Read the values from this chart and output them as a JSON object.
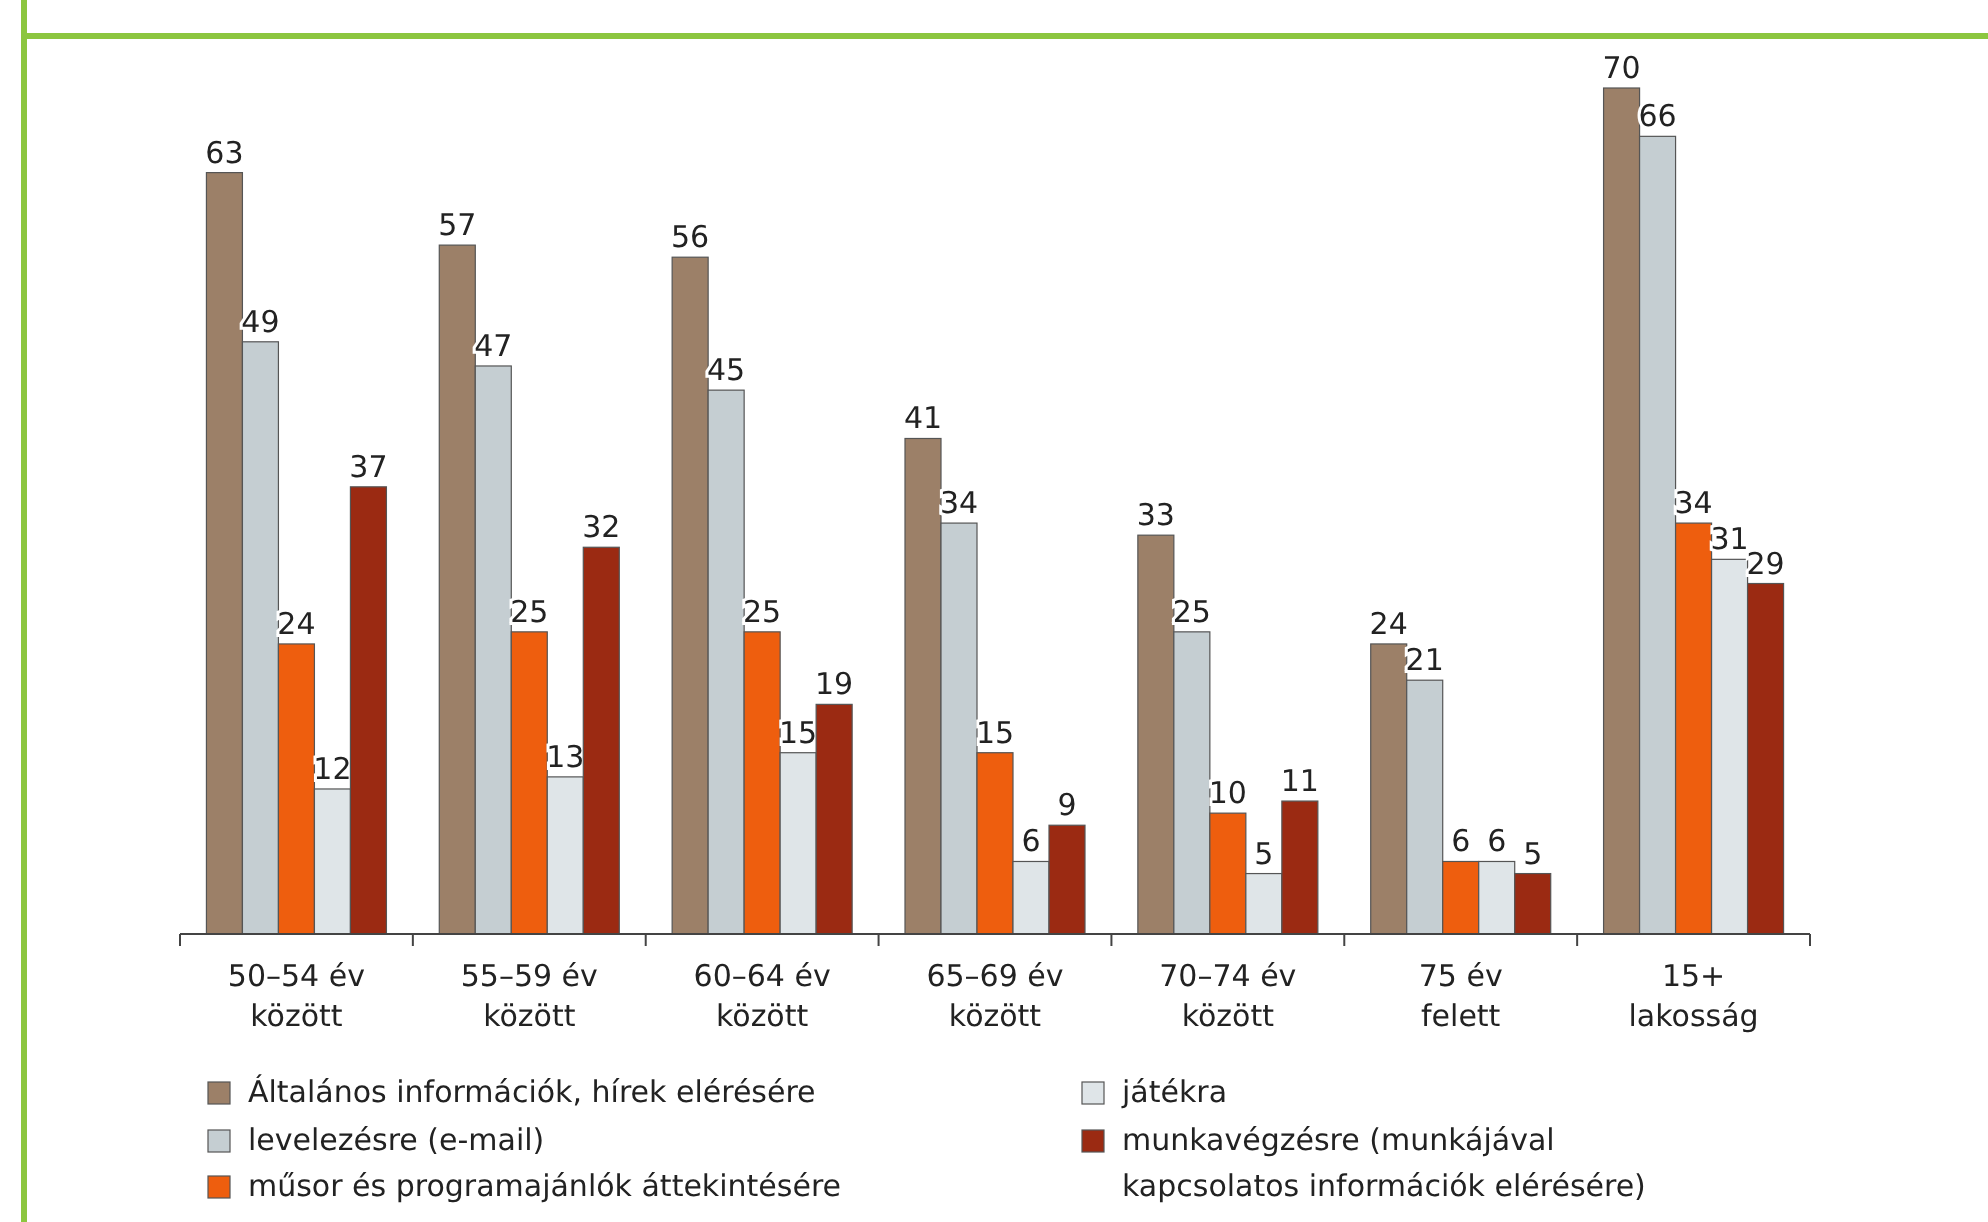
{
  "chart_data": {
    "type": "bar",
    "categories": [
      "50–54 év\nközött",
      "55–59 év\nközött",
      "60–64 év\nközött",
      "65–69 év\nközött",
      "70–74 év\nközött",
      "75 év\nfelett",
      "15+\nlakosság"
    ],
    "series": [
      {
        "name": "Általános információk, hírek elérésére",
        "color": "#9c8068",
        "values": [
          63,
          57,
          56,
          41,
          33,
          24,
          70
        ]
      },
      {
        "name": "levelezésre (e-mail)",
        "color": "#c5ced2",
        "values": [
          49,
          47,
          45,
          34,
          25,
          21,
          66
        ]
      },
      {
        "name": "műsor és programajánlók áttekintésére",
        "color": "#ee5e0e",
        "values": [
          24,
          25,
          25,
          15,
          10,
          6,
          34
        ]
      },
      {
        "name": "játékra",
        "color": "#dfe5e8",
        "values": [
          12,
          13,
          15,
          6,
          5,
          6,
          31
        ]
      },
      {
        "name": "munkavégzésre (munkájával\nkapcsolatos információk elérésére)",
        "color": "#9b2a12",
        "values": [
          37,
          32,
          19,
          9,
          11,
          5,
          29
        ]
      }
    ],
    "data_labels": true,
    "legend": "bottom",
    "grid": false
  }
}
